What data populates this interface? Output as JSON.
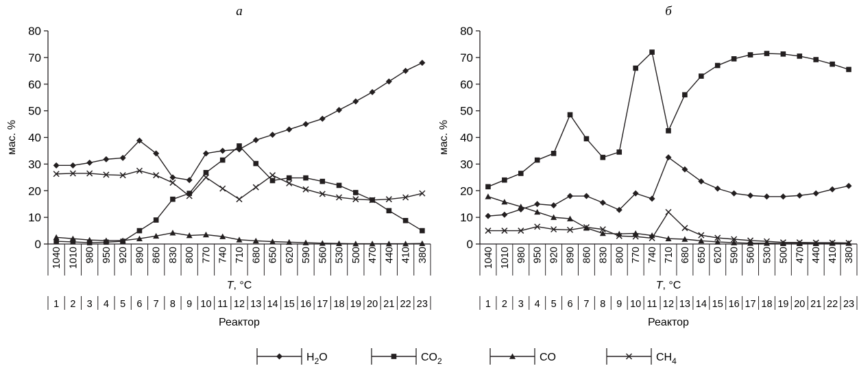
{
  "chart_data": [
    {
      "type": "line",
      "title": "а",
      "xlabel": "T, °C",
      "ylabel": "мас. %",
      "ylim": [
        0,
        80
      ],
      "yticks": [
        "0",
        "10",
        "20",
        "30",
        "40",
        "50",
        "60",
        "70",
        "80"
      ],
      "categories": [
        "1040",
        "1010",
        "980",
        "950",
        "920",
        "890",
        "860",
        "830",
        "800",
        "770",
        "740",
        "710",
        "680",
        "650",
        "620",
        "590",
        "560",
        "530",
        "500",
        "470",
        "440",
        "410",
        "380"
      ],
      "reactor_label": "Реактор",
      "reactors": [
        "1",
        "2",
        "3",
        "4",
        "5",
        "6",
        "7",
        "8",
        "9",
        "10",
        "11",
        "12",
        "13",
        "14",
        "15",
        "16",
        "17",
        "18",
        "19",
        "20",
        "21",
        "22",
        "23"
      ],
      "series": [
        {
          "name": "H2O",
          "marker": "diamond",
          "values": [
            29.5,
            29.5,
            30.5,
            31.8,
            32.3,
            38.8,
            34.0,
            25.0,
            24.0,
            34.0,
            35.0,
            35.5,
            39.0,
            41.0,
            43.0,
            45.0,
            47.0,
            50.3,
            53.5,
            57.0,
            61.0,
            65.0,
            68.0
          ]
        },
        {
          "name": "CO2",
          "marker": "square",
          "values": [
            1.0,
            0.8,
            0.5,
            0.7,
            1.0,
            5.0,
            9.0,
            16.8,
            19.0,
            26.8,
            31.5,
            36.8,
            30.2,
            23.8,
            24.8,
            24.8,
            23.5,
            22.0,
            19.3,
            16.5,
            12.5,
            8.8,
            5.0
          ]
        },
        {
          "name": "CO",
          "marker": "triangle",
          "values": [
            2.5,
            2.0,
            1.5,
            1.3,
            1.3,
            2.0,
            3.0,
            4.2,
            3.2,
            3.5,
            2.8,
            1.6,
            1.2,
            0.9,
            0.7,
            0.5,
            0.3,
            0.2,
            0.1,
            0.1,
            0.1,
            0.1,
            0.2
          ]
        },
        {
          "name": "CH4",
          "marker": "cross",
          "values": [
            26.3,
            26.5,
            26.5,
            26.0,
            25.8,
            27.5,
            25.8,
            23.0,
            18.0,
            25.0,
            20.8,
            16.8,
            21.3,
            25.8,
            22.8,
            20.5,
            18.8,
            17.5,
            16.8,
            16.5,
            16.8,
            17.5,
            19.0
          ]
        }
      ]
    },
    {
      "type": "line",
      "title": "б",
      "xlabel": "T, °C",
      "ylabel": "мас. %",
      "ylim": [
        0,
        80
      ],
      "yticks": [
        "0",
        "10",
        "20",
        "30",
        "40",
        "50",
        "60",
        "70",
        "80"
      ],
      "categories": [
        "1040",
        "1010",
        "980",
        "950",
        "920",
        "890",
        "860",
        "830",
        "800",
        "770",
        "740",
        "710",
        "680",
        "650",
        "620",
        "590",
        "560",
        "530",
        "500",
        "470",
        "440",
        "410",
        "380"
      ],
      "reactor_label": "Реактор",
      "reactors": [
        "1",
        "2",
        "3",
        "4",
        "5",
        "6",
        "7",
        "8",
        "9",
        "10",
        "11",
        "12",
        "13",
        "14",
        "15",
        "16",
        "17",
        "18",
        "19",
        "20",
        "21",
        "22",
        "23"
      ],
      "series": [
        {
          "name": "H2O",
          "marker": "diamond",
          "values": [
            10.5,
            11.0,
            13.0,
            15.0,
            14.5,
            18.0,
            18.0,
            15.5,
            12.8,
            19.0,
            17.0,
            32.5,
            28.0,
            23.5,
            20.8,
            19.0,
            18.2,
            17.8,
            17.8,
            18.2,
            19.0,
            20.5,
            21.8
          ]
        },
        {
          "name": "CO2",
          "marker": "square",
          "values": [
            21.5,
            24.0,
            26.5,
            31.5,
            34.0,
            48.5,
            39.5,
            32.5,
            34.5,
            66.0,
            72.0,
            42.5,
            56.0,
            63.0,
            67.0,
            69.5,
            71.0,
            71.5,
            71.3,
            70.5,
            69.2,
            67.5,
            65.5
          ]
        },
        {
          "name": "CO",
          "marker": "triangle",
          "values": [
            17.8,
            15.8,
            14.0,
            12.0,
            10.0,
            9.5,
            6.0,
            4.0,
            3.8,
            4.0,
            3.2,
            2.0,
            1.8,
            1.2,
            0.8,
            0.5,
            0.3,
            0.3,
            0.2,
            0.2,
            0.2,
            0.3,
            0.3
          ]
        },
        {
          "name": "CH4",
          "marker": "cross",
          "values": [
            5.0,
            5.0,
            5.0,
            6.5,
            5.5,
            5.3,
            6.3,
            5.5,
            3.0,
            2.8,
            2.2,
            12.0,
            6.0,
            3.3,
            2.3,
            1.8,
            1.3,
            1.0,
            0.6,
            0.6,
            0.5,
            0.5,
            0.4
          ]
        }
      ]
    }
  ],
  "legend": {
    "placement": "bottom-center",
    "items": [
      {
        "label_main": "H",
        "label_sub": "2",
        "label_tail": "O",
        "marker": "diamond"
      },
      {
        "label_main": "CO",
        "label_sub": "2",
        "label_tail": "",
        "marker": "square"
      },
      {
        "label_main": "CO",
        "label_sub": "",
        "label_tail": "",
        "marker": "triangle"
      },
      {
        "label_main": "CH",
        "label_sub": "4",
        "label_tail": "",
        "marker": "cross"
      }
    ]
  }
}
